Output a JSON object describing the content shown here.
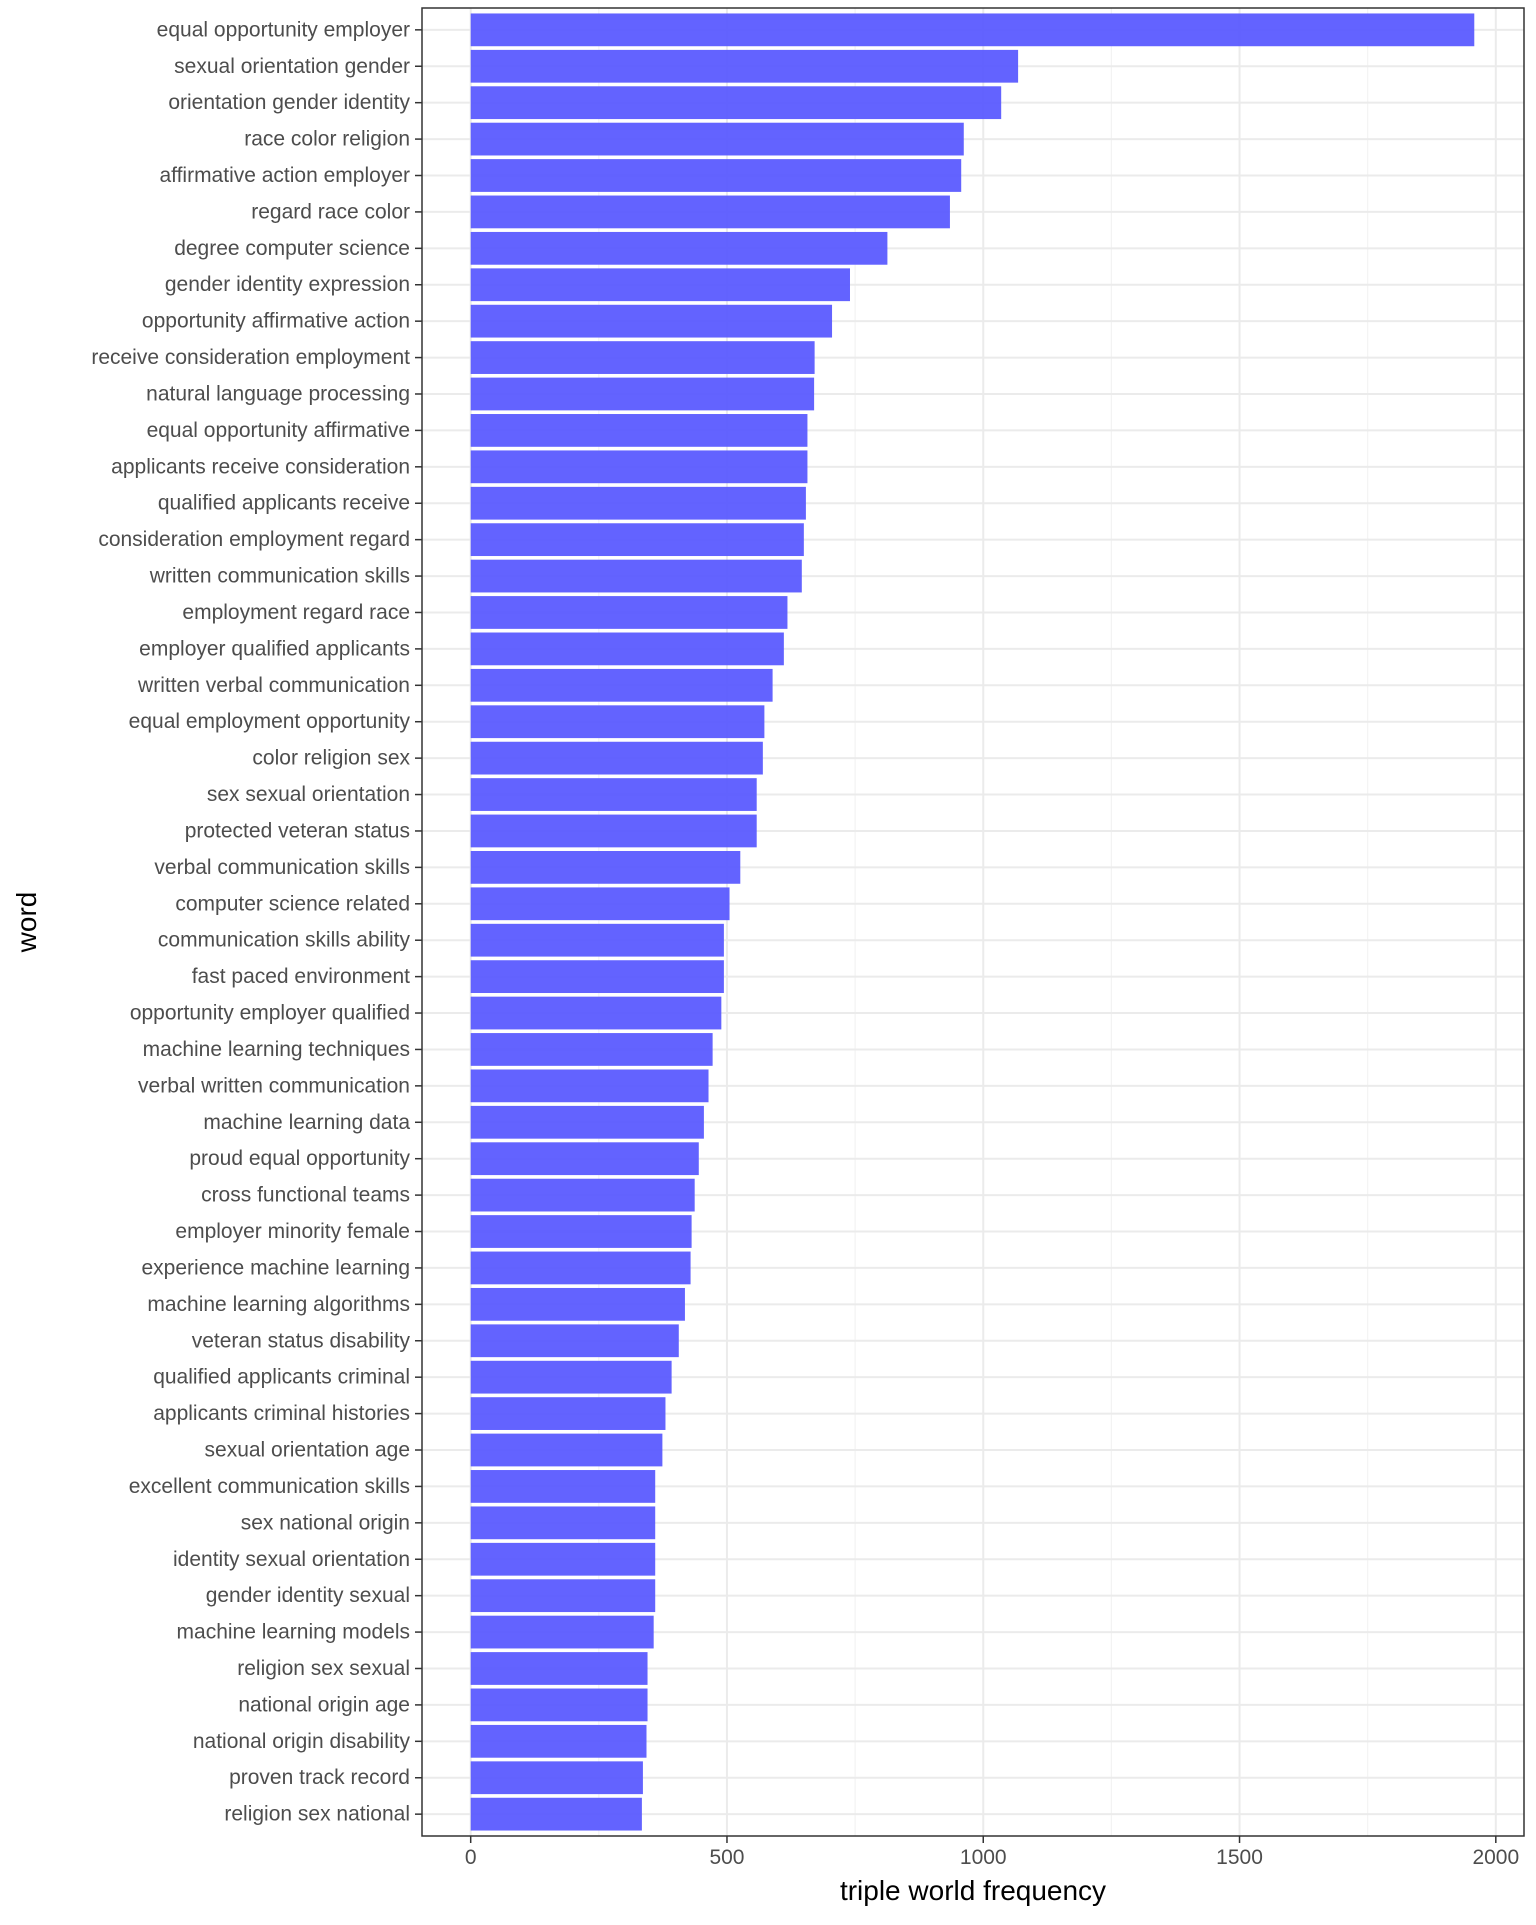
{
  "chart_data": {
    "type": "bar",
    "orientation": "horizontal",
    "xlabel": "triple world frequency",
    "ylabel": "word",
    "xlim": [
      -95,
      2055
    ],
    "xticks": [
      0,
      500,
      1000,
      1500,
      2000
    ],
    "grid": true,
    "bar_color": "#5b5bff",
    "categories": [
      "equal opportunity employer",
      "sexual orientation gender",
      "orientation gender identity",
      "race color religion",
      "affirmative action employer",
      "regard race color",
      "degree computer science",
      "gender identity expression",
      "opportunity affirmative action",
      "receive consideration employment",
      "natural language processing",
      "equal opportunity affirmative",
      "applicants receive consideration",
      "qualified applicants receive",
      "consideration employment regard",
      "written communication skills",
      "employment regard race",
      "employer qualified applicants",
      "written verbal communication",
      "equal employment opportunity",
      "color religion sex",
      "sex sexual orientation",
      "protected veteran status",
      "verbal communication skills",
      "computer science related",
      "communication skills ability",
      "fast paced environment",
      "opportunity employer qualified",
      "machine learning techniques",
      "verbal written communication",
      "machine learning data",
      "proud equal opportunity",
      "cross functional teams",
      "employer minority female",
      "experience machine learning",
      "machine learning algorithms",
      "veteran status disability",
      "qualified applicants criminal",
      "applicants criminal histories",
      "sexual orientation age",
      "excellent communication skills",
      "sex national origin",
      "identity sexual orientation",
      "gender identity sexual",
      "machine learning models",
      "religion sex sexual",
      "national origin age",
      "national origin disability",
      "proven track record",
      "religion sex national"
    ],
    "values": [
      1958,
      1068,
      1035,
      962,
      957,
      935,
      813,
      740,
      705,
      671,
      670,
      657,
      657,
      654,
      650,
      646,
      618,
      611,
      589,
      573,
      570,
      558,
      558,
      526,
      505,
      494,
      494,
      489,
      472,
      464,
      455,
      445,
      437,
      431,
      429,
      418,
      406,
      392,
      380,
      374,
      360,
      360,
      360,
      360,
      357,
      345,
      345,
      343,
      336,
      334
    ]
  }
}
